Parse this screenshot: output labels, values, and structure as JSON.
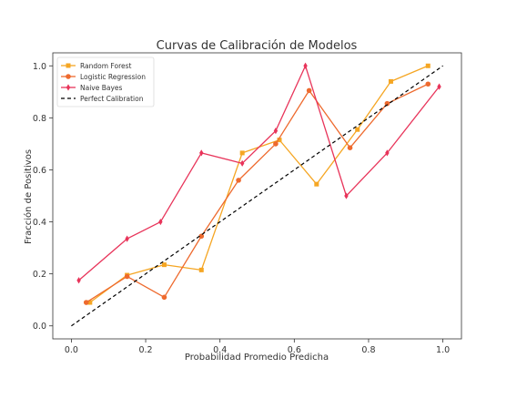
{
  "chart_data": {
    "type": "line",
    "title": "Curvas de Calibración de Modelos",
    "xlabel": "Probabilidad Promedio Predicha",
    "ylabel": "Fracción de Positivos",
    "xlim": [
      -0.05,
      1.05
    ],
    "ylim": [
      -0.05,
      1.05
    ],
    "xticks": [
      0.0,
      0.2,
      0.4,
      0.6,
      0.8,
      1.0
    ],
    "yticks": [
      0.0,
      0.2,
      0.4,
      0.6,
      0.8,
      1.0
    ],
    "xtick_labels": [
      "0.0",
      "0.2",
      "0.4",
      "0.6",
      "0.8",
      "1.0"
    ],
    "ytick_labels": [
      "0.0",
      "0.2",
      "0.4",
      "0.6",
      "0.8",
      "1.0"
    ],
    "grid": false,
    "legend_position": "top-left",
    "series": [
      {
        "name": "Random Forest",
        "color": "#f5a623",
        "marker": "square",
        "dash": "solid",
        "x": [
          0.05,
          0.15,
          0.25,
          0.35,
          0.46,
          0.56,
          0.66,
          0.77,
          0.86,
          0.96
        ],
        "y": [
          0.09,
          0.195,
          0.235,
          0.215,
          0.665,
          0.715,
          0.545,
          0.755,
          0.94,
          1.0
        ]
      },
      {
        "name": "Logistic Regression",
        "color": "#ee6a2e",
        "marker": "circle",
        "dash": "solid",
        "x": [
          0.04,
          0.15,
          0.25,
          0.35,
          0.45,
          0.55,
          0.64,
          0.75,
          0.85,
          0.96
        ],
        "y": [
          0.09,
          0.19,
          0.11,
          0.345,
          0.56,
          0.7,
          0.905,
          0.685,
          0.855,
          0.93
        ]
      },
      {
        "name": "Naive Bayes",
        "color": "#e8345a",
        "marker": "diamond",
        "dash": "solid",
        "x": [
          0.02,
          0.15,
          0.24,
          0.35,
          0.46,
          0.55,
          0.63,
          0.74,
          0.85,
          0.99
        ],
        "y": [
          0.175,
          0.335,
          0.4,
          0.665,
          0.625,
          0.75,
          1.0,
          0.5,
          0.665,
          0.92
        ]
      },
      {
        "name": "Perfect Calibration",
        "color": "#000000",
        "marker": "none",
        "dash": "dashed",
        "x": [
          0.0,
          1.0
        ],
        "y": [
          0.0,
          1.0
        ]
      }
    ]
  }
}
